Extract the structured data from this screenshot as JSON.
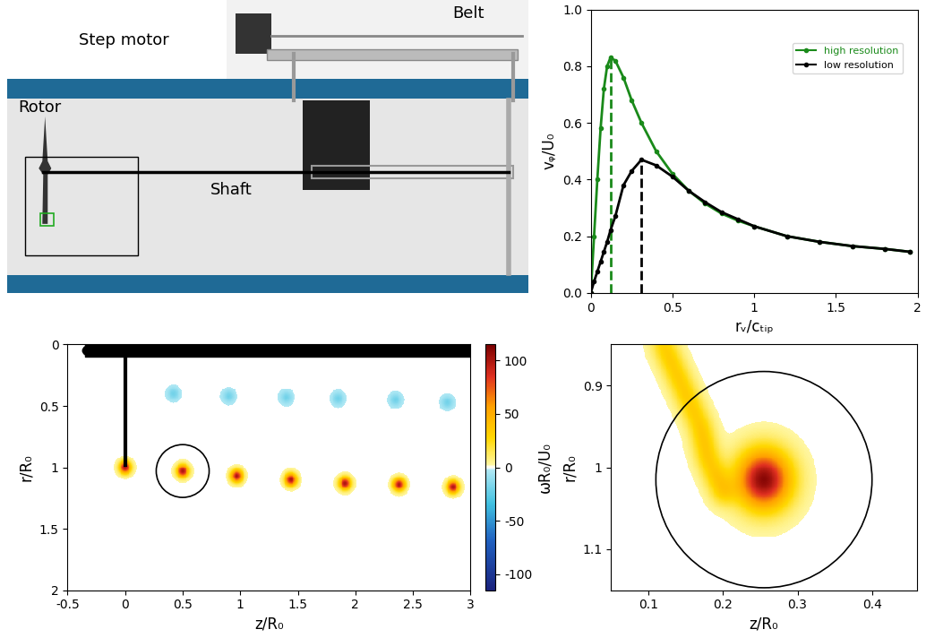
{
  "chart_data": [
    {
      "type": "photo",
      "labels": [
        "Step motor",
        "Belt",
        "Rotor",
        "Shaft"
      ]
    },
    {
      "type": "line",
      "xlabel": "rᵥ/cₜᵢₚ",
      "ylabel": "vᵩ/U₀",
      "x": [
        0,
        0.02,
        0.04,
        0.06,
        0.08,
        0.1,
        0.12,
        0.15,
        0.2,
        0.25,
        0.31,
        0.4,
        0.5,
        0.6,
        0.7,
        0.8,
        0.9,
        1.0,
        1.2,
        1.4,
        1.6,
        1.8,
        1.95
      ],
      "series": [
        {
          "name": "high resolution",
          "color": "#1a8a1a",
          "marker": "o",
          "values": [
            0,
            0.2,
            0.4,
            0.58,
            0.72,
            0.8,
            0.83,
            0.82,
            0.76,
            0.68,
            0.6,
            0.5,
            0.42,
            0.36,
            0.315,
            0.28,
            0.255,
            0.235,
            0.2,
            0.18,
            0.165,
            0.155,
            0.145
          ]
        },
        {
          "name": "low resolution",
          "color": "#000000",
          "marker": "o",
          "values": [
            0,
            0.04,
            0.075,
            0.11,
            0.145,
            0.18,
            0.22,
            0.27,
            0.38,
            0.43,
            0.47,
            0.45,
            0.41,
            0.36,
            0.32,
            0.285,
            0.26,
            0.235,
            0.2,
            0.18,
            0.165,
            0.155,
            0.145
          ]
        }
      ],
      "xlim": [
        0,
        2
      ],
      "xticks": [
        0,
        0.5,
        1,
        1.5,
        2
      ],
      "ylim": [
        0,
        1
      ],
      "yticks": [
        {
          "value": 0,
          "label": "0.0"
        },
        0.2,
        0.4,
        0.6,
        0.8,
        {
          "value": 1,
          "label": "1.0"
        }
      ],
      "legend": "upper right"
    },
    {
      "type": "vorticity",
      "xlabel": "z/R₀",
      "ylabel": "r/R₀",
      "xlim": [
        -0.5,
        3
      ],
      "xticks": [
        -0.5,
        0,
        0.5,
        1,
        1.5,
        2,
        2.5,
        3
      ],
      "ylim": [
        2,
        0
      ],
      "yticks": [
        0,
        0.5,
        1,
        1.5,
        2
      ],
      "colorbar": {
        "label": "ωR₀/U₀",
        "range": [
          -115,
          115
        ],
        "ticks": [
          -100,
          -50,
          0,
          50,
          100
        ]
      },
      "vortices": {
        "z": [
          0,
          0.5,
          0.97,
          1.44,
          1.91,
          2.38,
          2.85,
          0.42,
          0.9,
          1.4,
          1.85,
          2.35,
          2.8
        ],
        "r": [
          1.0,
          1.03,
          1.07,
          1.1,
          1.13,
          1.14,
          1.16,
          0.4,
          0.42,
          0.43,
          0.44,
          0.45,
          0.47
        ],
        "omega": [
          100,
          100,
          100,
          100,
          100,
          100,
          100,
          -20,
          -20,
          -20,
          -20,
          -20,
          -20
        ]
      }
    },
    {
      "type": "vorticity",
      "xlabel": "z/R₀",
      "ylabel": "r/R₀",
      "xlim": [
        0.05,
        0.46
      ],
      "xticks": [
        0.1,
        0.2,
        0.3,
        0.4
      ],
      "ylim": [
        1.15,
        0.85
      ],
      "yticks": [
        0.9,
        1,
        1.1
      ],
      "vortices": {
        "z": [
          0.255
        ],
        "r": [
          1.015
        ],
        "omega": [
          110
        ]
      },
      "sheet": {
        "z": [
          0.12,
          0.13,
          0.14,
          0.15,
          0.16,
          0.17,
          0.175,
          0.18,
          0.19,
          0.2
        ],
        "r": [
          0.85,
          0.87,
          0.89,
          0.91,
          0.93,
          0.95,
          0.97,
          0.99,
          1.01,
          1.03
        ],
        "omega": [
          25,
          25,
          25,
          25,
          25,
          25,
          25,
          25,
          25,
          25
        ]
      }
    }
  ]
}
